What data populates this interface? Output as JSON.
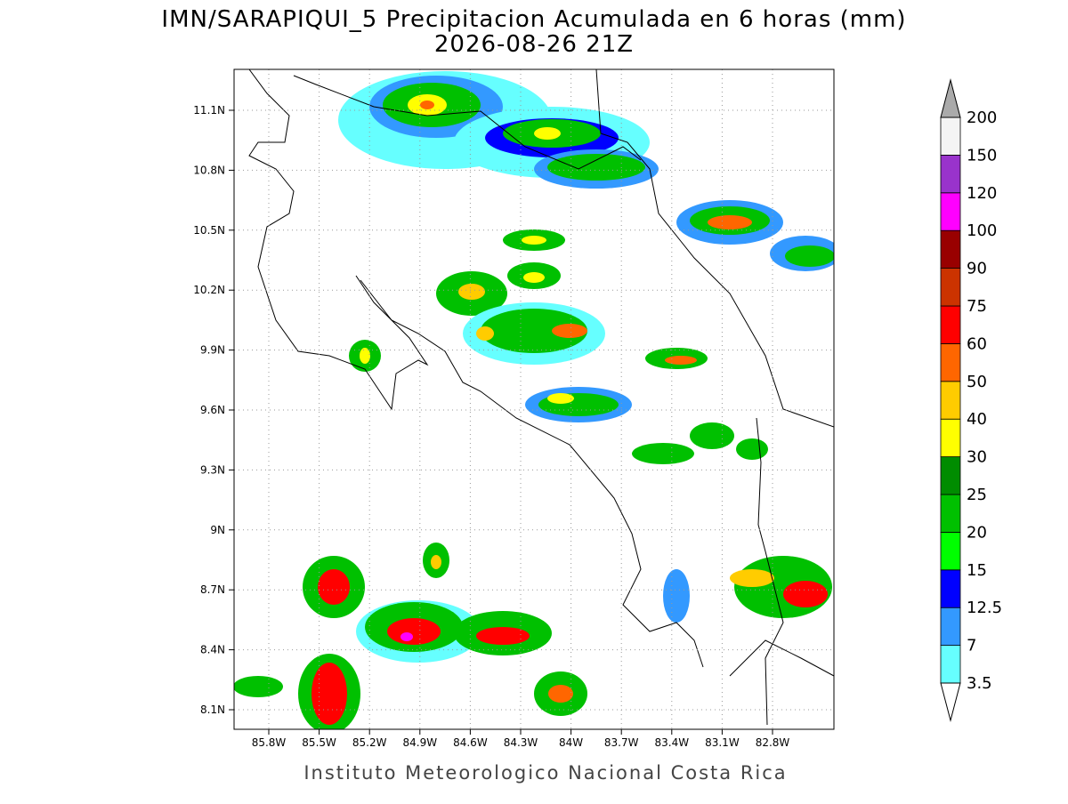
{
  "title": "IMN/SARAPIQUI_5 Precipitacion Acumulada en 6 horas (mm)",
  "subtitle": "2026-08-26 21Z",
  "footer": "Instituto Meteorologico Nacional Costa Rica",
  "map": {
    "lat_ticks": [
      "11.1N",
      "10.8N",
      "10.5N",
      "10.2N",
      "9.9N",
      "9.6N",
      "9.3N",
      "9N",
      "8.7N",
      "8.4N",
      "8.1N"
    ],
    "lon_ticks": [
      "85.8W",
      "85.5W",
      "85.2W",
      "84.9W",
      "84.6W",
      "84.3W",
      "84W",
      "83.7W",
      "83.4W",
      "83.1W",
      "82.8W"
    ]
  },
  "colorbar": {
    "levels": [
      3.5,
      7,
      12.5,
      15,
      20,
      25,
      30,
      40,
      50,
      60,
      75,
      90,
      100,
      120,
      150,
      200
    ],
    "colors": [
      "#66ffff",
      "#3399ff",
      "#0000ff",
      "#00ff00",
      "#00c000",
      "#008c00",
      "#ffff00",
      "#ffcc00",
      "#ff6600",
      "#ff0000",
      "#cc3300",
      "#990000",
      "#ff00ff",
      "#9933cc",
      "#f4f4f4"
    ],
    "over_color": "#aaaaaa",
    "under_color": "#ffffff"
  }
}
